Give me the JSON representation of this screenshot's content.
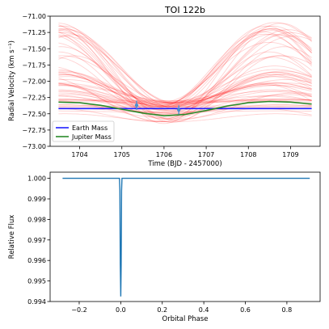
{
  "chart_data": [
    {
      "type": "line",
      "title": "TOI 122b",
      "xlabel": "Time (BJD - 2457000)",
      "ylabel": "Radial Velocity (km s⁻¹)",
      "xlim": [
        1703.3,
        1709.7
      ],
      "ylim": [
        -73.0,
        -71.0
      ],
      "xticks": [
        1704,
        1705,
        1706,
        1707,
        1708,
        1709
      ],
      "yticks": [
        -71.0,
        -71.25,
        -71.5,
        -71.75,
        -72.0,
        -72.25,
        -72.5,
        -72.75,
        -73.0
      ],
      "ytick_labels": [
        "−71.00",
        "−71.25",
        "−71.50",
        "−71.75",
        "−72.00",
        "−72.25",
        "−72.50",
        "−72.75",
        "−73.00"
      ],
      "legend_position": "lower-left",
      "series": [
        {
          "name": "Earth Mass",
          "color": "#1f1fff",
          "x": [
            1703.5,
            1709.5
          ],
          "y": [
            -72.42,
            -72.42
          ]
        },
        {
          "name": "Jupiter Mass",
          "color": "#2a8a2a",
          "x": [
            1703.5,
            1704.0,
            1704.5,
            1705.0,
            1705.5,
            1706.0,
            1706.5,
            1707.0,
            1707.5,
            1708.0,
            1708.5,
            1709.0,
            1709.5
          ],
          "y": [
            -72.32,
            -72.33,
            -72.37,
            -72.43,
            -72.49,
            -72.53,
            -72.51,
            -72.45,
            -72.38,
            -72.33,
            -72.31,
            -72.32,
            -72.35
          ]
        }
      ],
      "posterior_band": {
        "color": "#ff0000",
        "n_draws": 60,
        "period": 5.1,
        "t_min": 1706.1,
        "min_range": [
          -72.65,
          -72.3
        ],
        "max_range": [
          -72.5,
          -71.05
        ]
      },
      "observations": {
        "color": "#4a8fd0",
        "points": [
          {
            "x": 1705.35,
            "y": -72.37,
            "err": 0.07
          },
          {
            "x": 1706.35,
            "y": -72.44,
            "err": 0.07
          }
        ]
      }
    },
    {
      "type": "line",
      "title": "",
      "xlabel": "Orbital Phase",
      "ylabel": "Relative Flux",
      "xlim": [
        -0.34,
        0.96
      ],
      "ylim": [
        0.994,
        1.0003
      ],
      "xticks": [
        -0.2,
        0.0,
        0.2,
        0.4,
        0.6,
        0.8
      ],
      "xtick_labels": [
        "−0.2",
        "0.0",
        "0.2",
        "0.4",
        "0.6",
        "0.8"
      ],
      "yticks": [
        0.994,
        0.995,
        0.996,
        0.997,
        0.998,
        0.999,
        1.0
      ],
      "ytick_labels": [
        "0.994",
        "0.995",
        "0.996",
        "0.997",
        "0.998",
        "0.999",
        "1.000"
      ],
      "series": [
        {
          "color": "#1f77b4",
          "x": [
            -0.28,
            -0.006,
            -0.004,
            -0.002,
            0.0,
            0.002,
            0.004,
            0.006,
            0.91
          ],
          "y": [
            1.0,
            1.0,
            0.9994,
            0.9958,
            0.99425,
            0.9958,
            0.9994,
            1.0,
            1.0
          ]
        }
      ]
    }
  ]
}
